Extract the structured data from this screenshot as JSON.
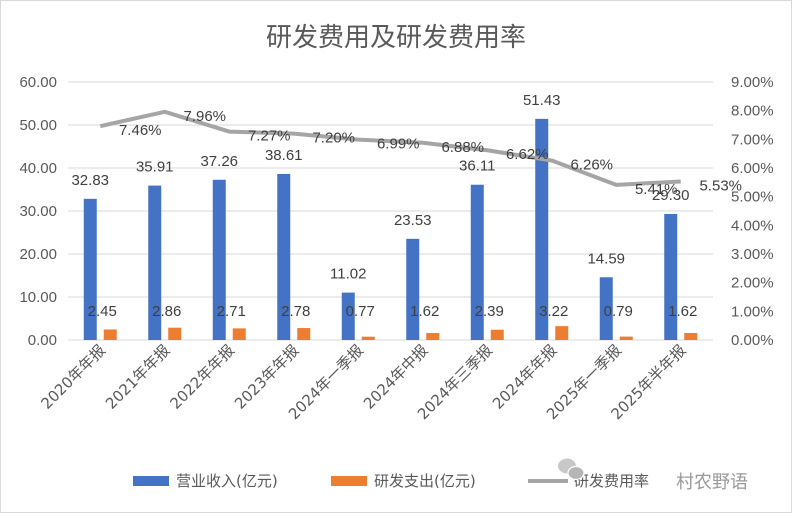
{
  "chart_data": {
    "type": "bar",
    "title": "研发费用及研发费用率",
    "categories": [
      "2020年年报",
      "2021年年报",
      "2022年年报",
      "2023年年报",
      "2024年一季报",
      "2024年中报",
      "2024年三季报",
      "2024年年报",
      "2025年一季报",
      "2025年半年报"
    ],
    "series": [
      {
        "name": "营业收入(亿元)",
        "type": "bar",
        "axis": "left",
        "color": "#4472c4",
        "values": [
          32.83,
          35.91,
          37.26,
          38.61,
          11.02,
          23.53,
          36.11,
          51.43,
          14.59,
          29.3
        ],
        "labels": [
          "32.83",
          "35.91",
          "37.26",
          "38.61",
          "11.02",
          "23.53",
          "36.11",
          "51.43",
          "14.59",
          "29.30"
        ]
      },
      {
        "name": "研发支出(亿元)",
        "type": "bar",
        "axis": "left",
        "color": "#ed7d31",
        "values": [
          2.45,
          2.86,
          2.71,
          2.78,
          0.77,
          1.62,
          2.39,
          3.22,
          0.79,
          1.62
        ],
        "labels": [
          "2.45",
          "2.86",
          "2.71",
          "2.78",
          "0.77",
          "1.62",
          "2.39",
          "3.22",
          "0.79",
          "1.62"
        ]
      },
      {
        "name": "研发费用率",
        "type": "line",
        "axis": "right",
        "color": "#a5a5a5",
        "values": [
          7.46,
          7.96,
          7.27,
          7.2,
          6.99,
          6.88,
          6.62,
          6.26,
          5.41,
          5.53
        ],
        "labels": [
          "7.46%",
          "7.96%",
          "7.27%",
          "7.20%",
          "6.99%",
          "6.88%",
          "6.62%",
          "6.26%",
          "5.41%",
          "5.53%"
        ]
      }
    ],
    "y_left": {
      "ylim": [
        0,
        60
      ],
      "ticks": [
        "0.00",
        "10.00",
        "20.00",
        "30.00",
        "40.00",
        "50.00",
        "60.00"
      ]
    },
    "y_right": {
      "ylim": [
        0,
        9
      ],
      "ticks": [
        "0.00%",
        "1.00%",
        "2.00%",
        "3.00%",
        "4.00%",
        "5.00%",
        "6.00%",
        "7.00%",
        "8.00%",
        "9.00%"
      ]
    },
    "grid": true,
    "legend": "bottom"
  },
  "watermark": "村农野语"
}
